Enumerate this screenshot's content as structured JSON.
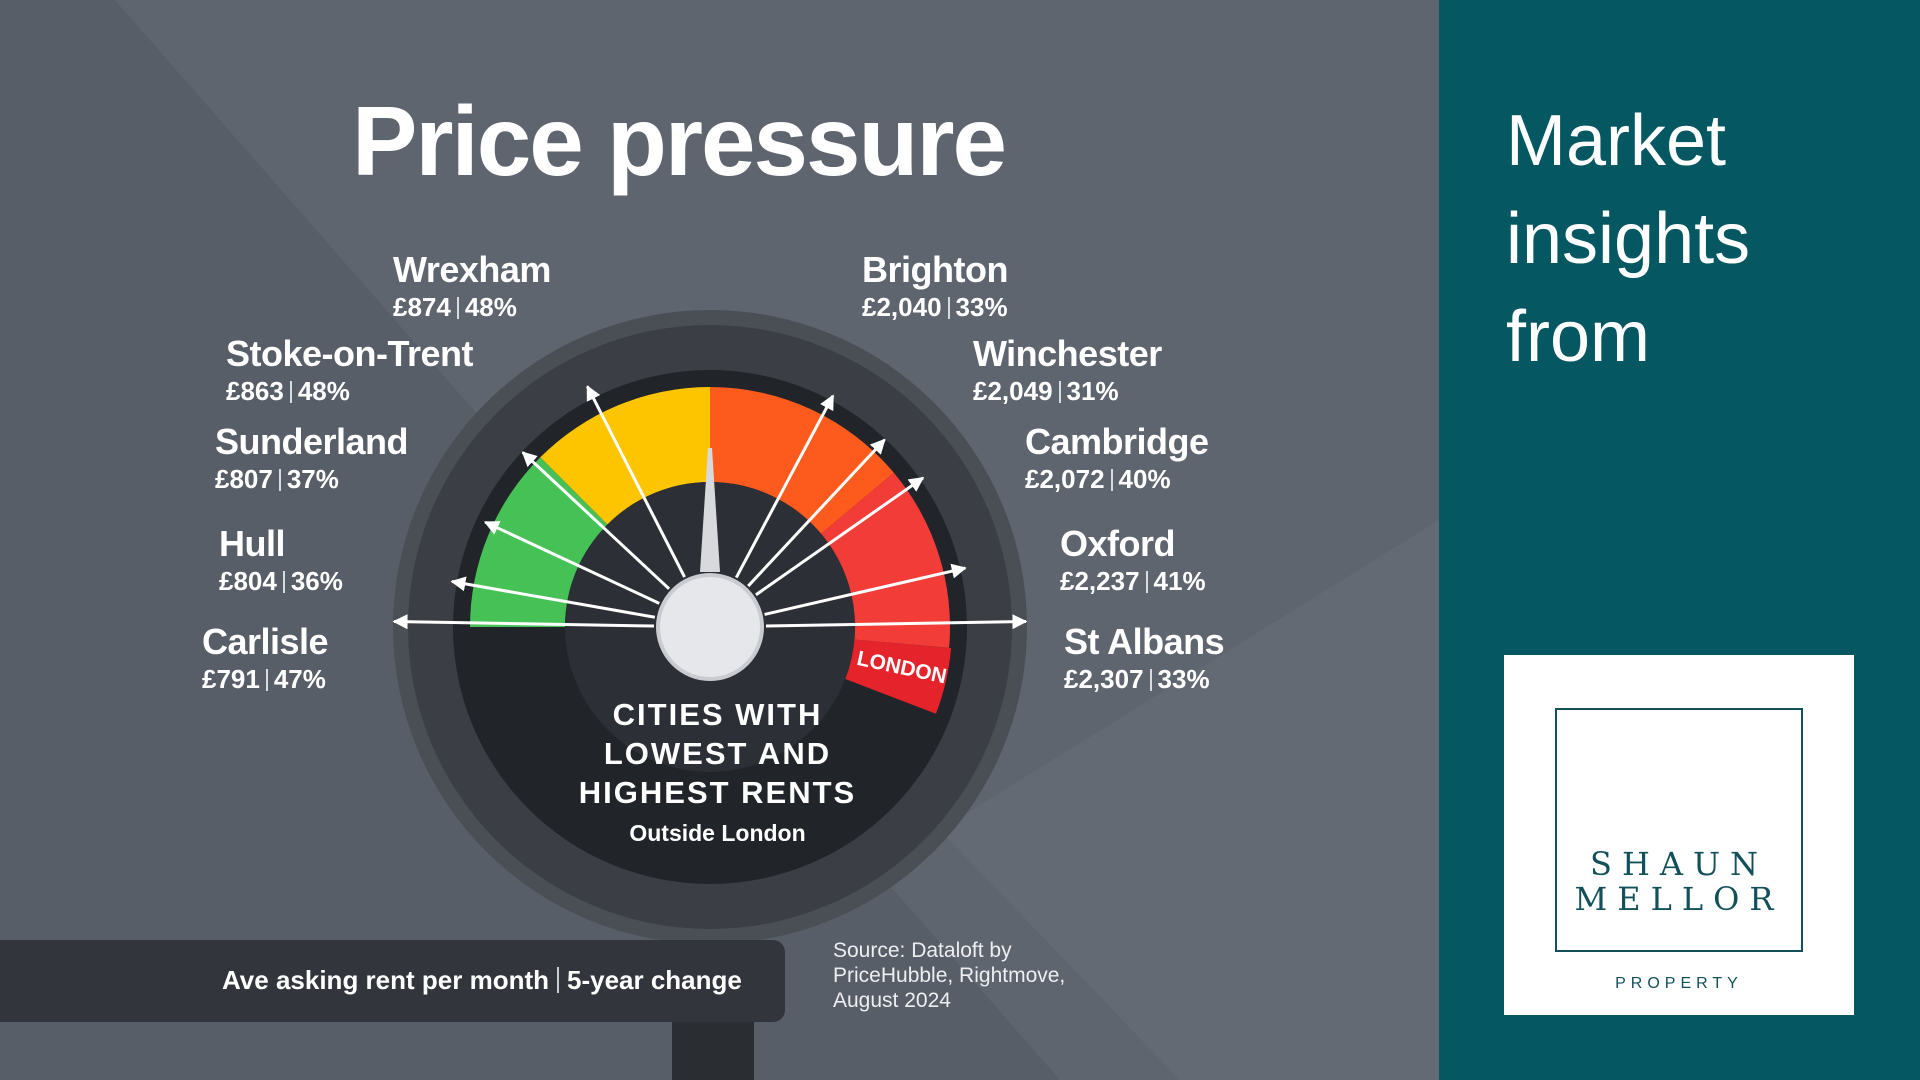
{
  "title": "Price pressure",
  "gauge": {
    "heading_lines": [
      "CITIES WITH",
      "LOWEST AND",
      "HIGHEST RENTS"
    ],
    "subheading": "Outside London",
    "marker_label": "LONDON",
    "segment_colors": [
      "#46c156",
      "#fdc400",
      "#fd5a1e",
      "#f23c38"
    ]
  },
  "cities_low": [
    {
      "name": "Wrexham",
      "rent": "£874",
      "change": "48%"
    },
    {
      "name": "Stoke-on-Trent",
      "rent": "£863",
      "change": "48%"
    },
    {
      "name": "Sunderland",
      "rent": "£807",
      "change": "37%"
    },
    {
      "name": "Hull",
      "rent": "£804",
      "change": "36%"
    },
    {
      "name": "Carlisle",
      "rent": "£791",
      "change": "47%"
    }
  ],
  "cities_high": [
    {
      "name": "Brighton",
      "rent": "£2,040",
      "change": "33%"
    },
    {
      "name": "Winchester",
      "rent": "£2,049",
      "change": "31%"
    },
    {
      "name": "Cambridge",
      "rent": "£2,072",
      "change": "40%"
    },
    {
      "name": "Oxford",
      "rent": "£2,237",
      "change": "41%"
    },
    {
      "name": "St Albans",
      "rent": "£2,307",
      "change": "33%"
    }
  ],
  "footer": {
    "label_rent": "Ave asking rent per month",
    "label_change": "5-year change"
  },
  "source": {
    "lines": [
      "Source: Dataloft by",
      "PriceHubble, Rightmove,",
      "August 2024"
    ]
  },
  "side": {
    "lines": [
      "Market",
      "insights",
      "from"
    ]
  },
  "logo": {
    "line1": "SHAUN",
    "line2": "MELLOR",
    "line3": "PROPERTY"
  },
  "colors": {
    "background": "#5f656e",
    "panel": "#055862",
    "brand": "#12505a"
  }
}
